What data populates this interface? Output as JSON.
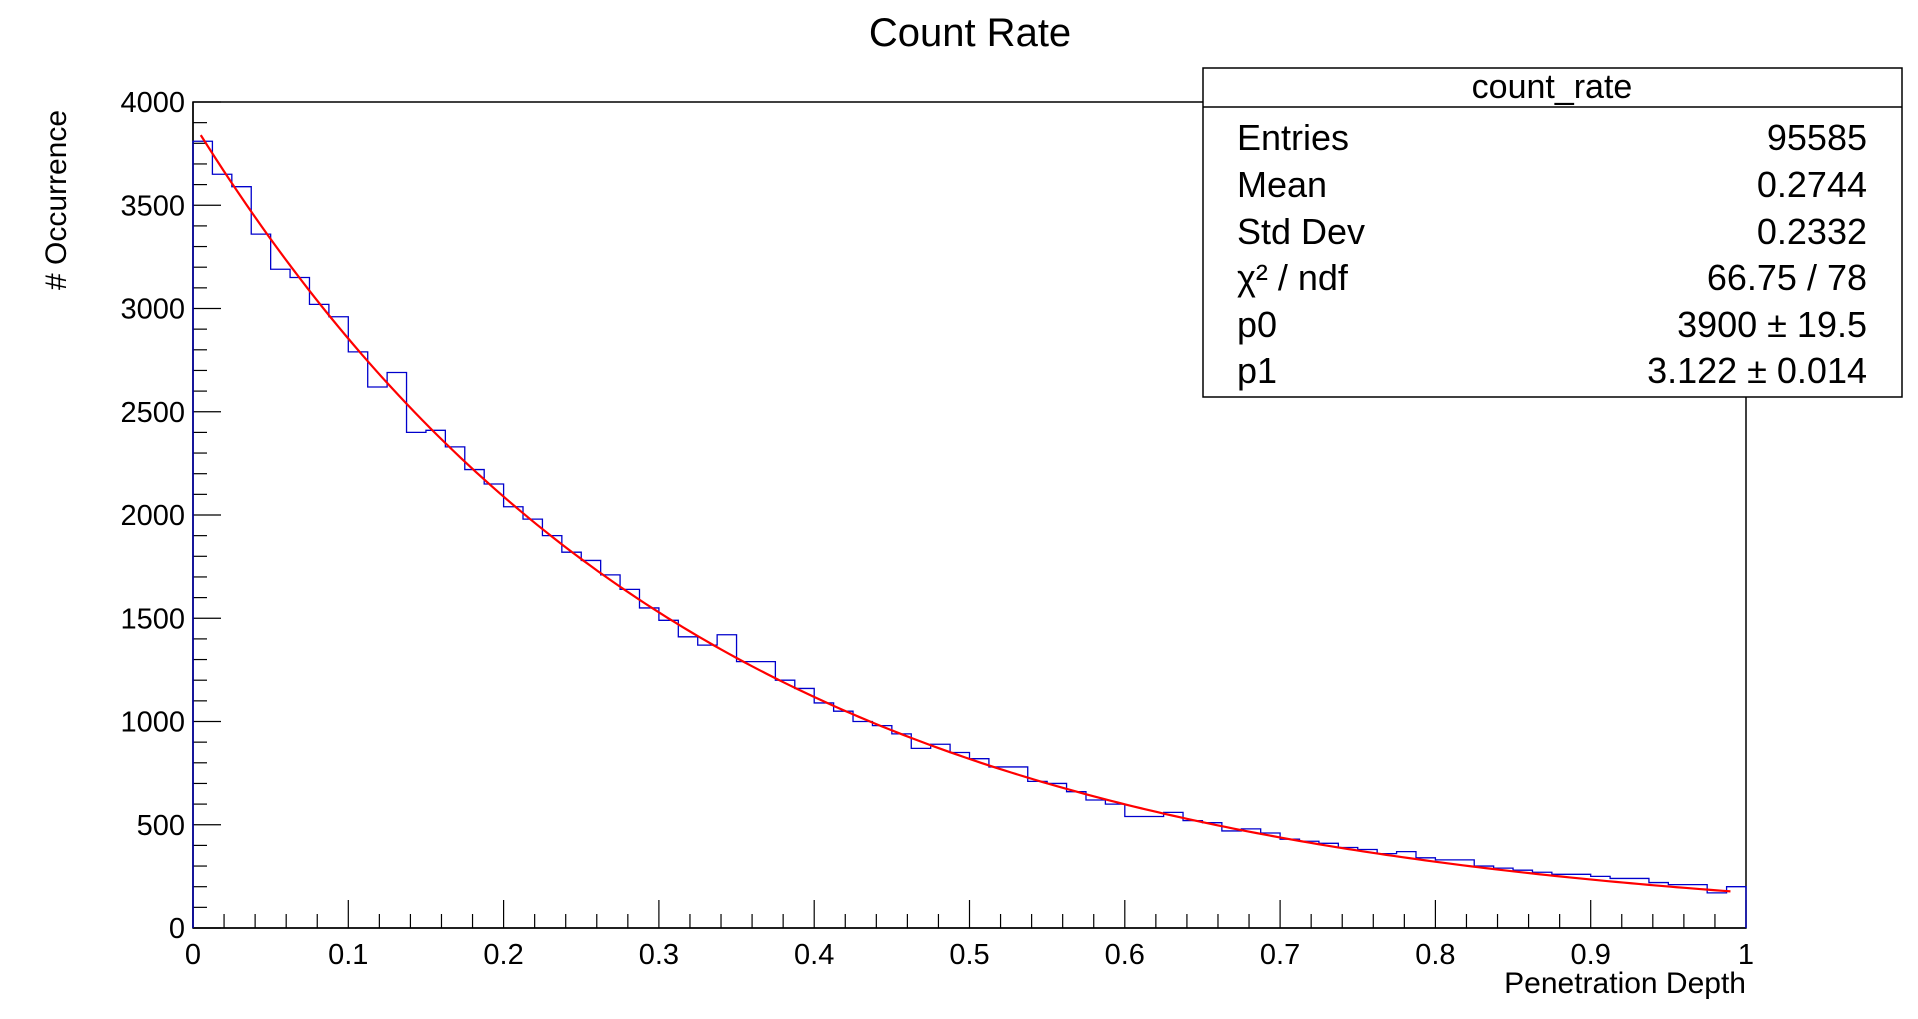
{
  "chart_data": {
    "type": "histogram",
    "title": "Count Rate",
    "xlabel": "Penetration Depth",
    "ylabel": "# Occurrence",
    "xlim": [
      0,
      1
    ],
    "ylim": [
      0,
      4000
    ],
    "x_ticks": [
      "0",
      "0.1",
      "0.2",
      "0.3",
      "0.4",
      "0.5",
      "0.6",
      "0.7",
      "0.8",
      "0.9",
      "1"
    ],
    "y_ticks": [
      "0",
      "500",
      "1000",
      "1500",
      "2000",
      "2500",
      "3000",
      "3500",
      "4000"
    ],
    "grid": false,
    "hist_color": "#0000cc",
    "fit_color": "#ff0000",
    "bin_width": 0.0125,
    "series": [
      {
        "type": "step",
        "values": [
          3810,
          3650,
          3590,
          3360,
          3190,
          3150,
          3020,
          2960,
          2790,
          2620,
          2690,
          2400,
          2410,
          2330,
          2220,
          2150,
          2040,
          1980,
          1900,
          1820,
          1780,
          1710,
          1640,
          1550,
          1490,
          1410,
          1370,
          1420,
          1290,
          1290,
          1200,
          1160,
          1090,
          1050,
          1000,
          980,
          940,
          870,
          890,
          850,
          820,
          780,
          780,
          710,
          700,
          660,
          620,
          600,
          540,
          540,
          560,
          520,
          510,
          470,
          480,
          460,
          430,
          420,
          410,
          390,
          380,
          360,
          370,
          340,
          330,
          330,
          300,
          290,
          280,
          270,
          260,
          260,
          250,
          240,
          240,
          220,
          210,
          210,
          170,
          200
        ]
      },
      {
        "type": "fit",
        "formula": "p0*exp(-p1*x)",
        "p0": 3900,
        "p1": 3.122,
        "x_range": [
          0.005,
          0.99
        ]
      }
    ],
    "stats_box": {
      "title": "count_rate",
      "rows": [
        {
          "label": "Entries",
          "value": "95585"
        },
        {
          "label": "Mean",
          "value": "0.2744"
        },
        {
          "label": "Std Dev",
          "value": "0.2332"
        },
        {
          "label": "χ² / ndf",
          "value": "66.75 / 78"
        },
        {
          "label": "p0",
          "value": "3900 ± 19.5"
        },
        {
          "label": "p1",
          "value": "3.122 ± 0.014"
        }
      ]
    }
  }
}
